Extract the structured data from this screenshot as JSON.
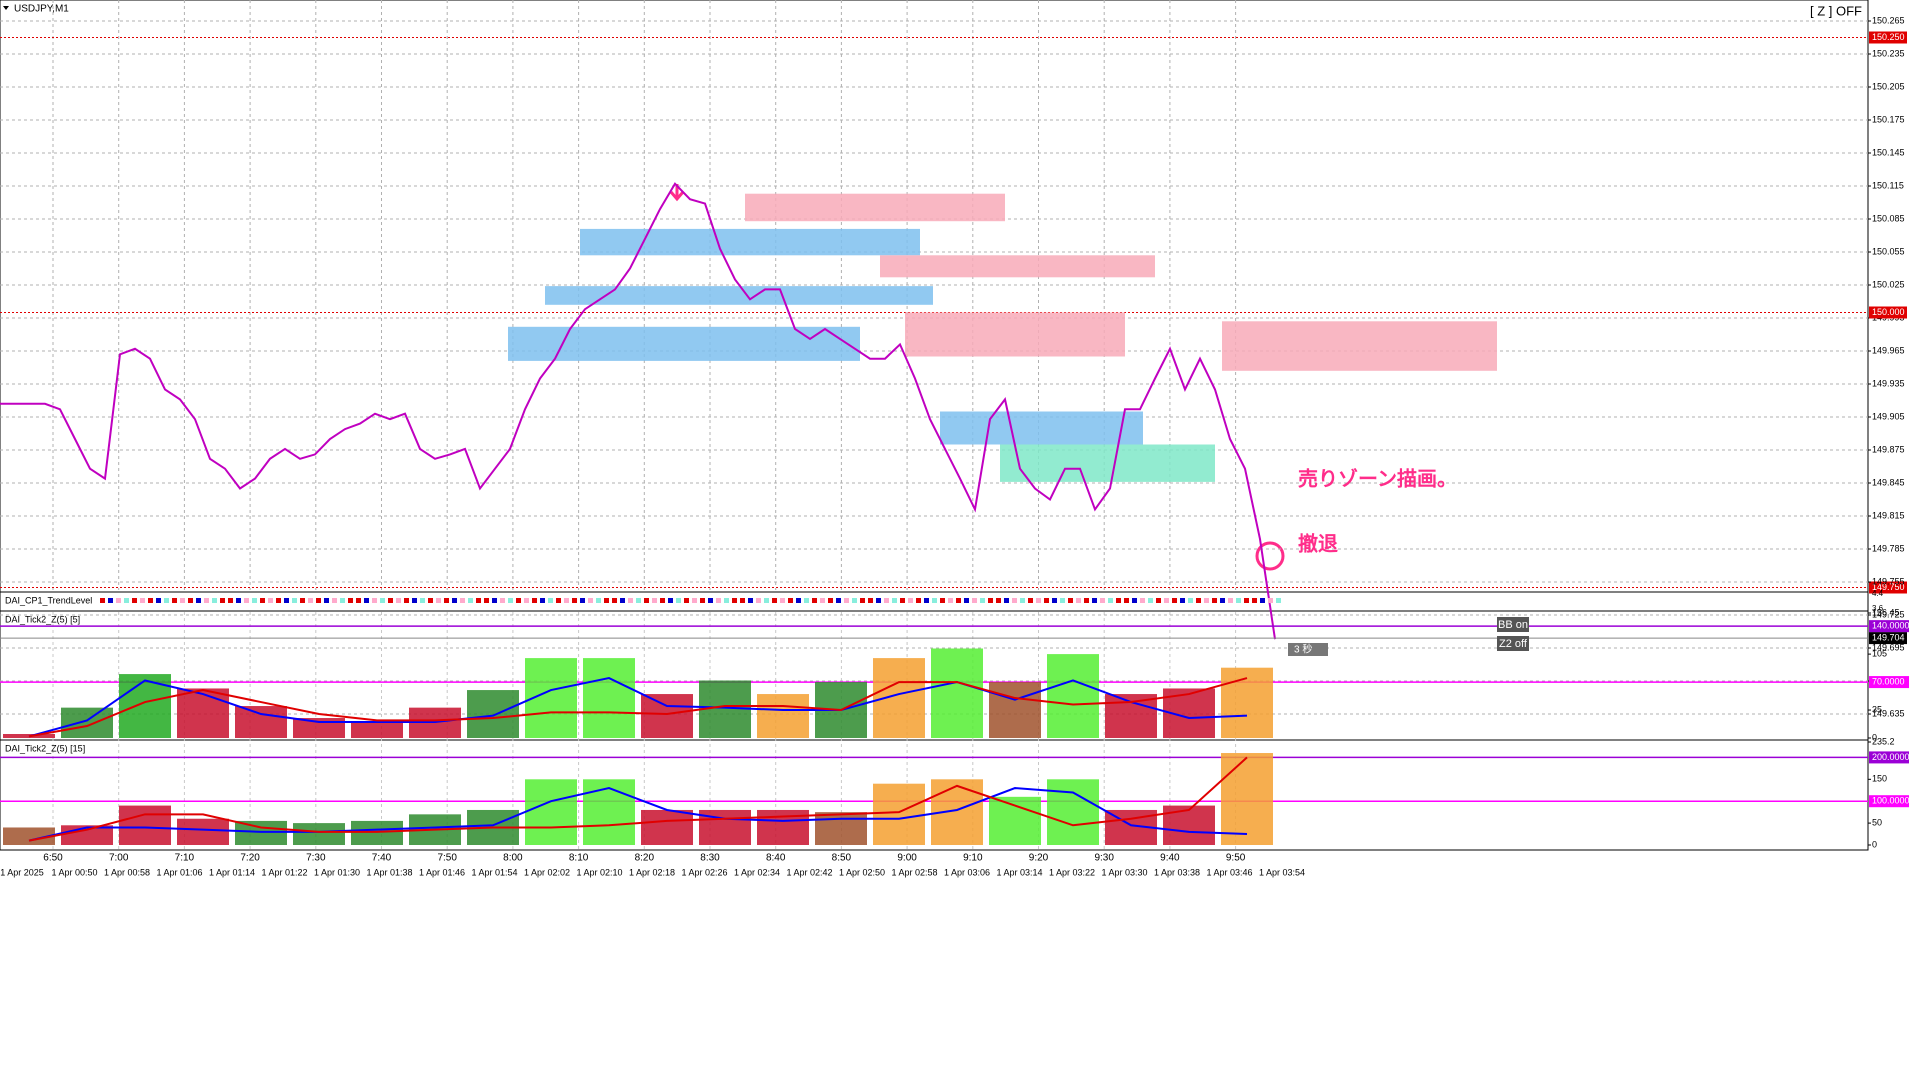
{
  "window": {
    "symbol": "USDJPY,M1",
    "zmode": "[ Z ] OFF"
  },
  "x_axis": {
    "times": [
      "6:50",
      "7:00",
      "7:10",
      "7:20",
      "7:30",
      "7:40",
      "7:50",
      "8:00",
      "8:10",
      "8:20",
      "8:30",
      "8:40",
      "8:50",
      "9:00",
      "9:10",
      "9:20",
      "9:30",
      "9:40",
      "9:50"
    ],
    "dates": [
      "1 Apr 2025",
      "1 Apr 00:50",
      "1 Apr 00:58",
      "1 Apr 01:06",
      "1 Apr 01:14",
      "1 Apr 01:22",
      "1 Apr 01:30",
      "1 Apr 01:38",
      "1 Apr 01:46",
      "1 Apr 01:54",
      "1 Apr 02:02",
      "1 Apr 02:10",
      "1 Apr 02:18",
      "1 Apr 02:26",
      "1 Apr 02:34",
      "1 Apr 02:42",
      "1 Apr 02:50",
      "1 Apr 02:58",
      "1 Apr 03:06",
      "1 Apr 03:14",
      "1 Apr 03:22",
      "1 Apr 03:30",
      "1 Apr 03:38",
      "1 Apr 03:46",
      "1 Apr 03:54"
    ]
  },
  "chart_data": [
    {
      "type": "line",
      "color": "#c000c0",
      "values": [
        149.917,
        149.917,
        149.917,
        149.917,
        149.912,
        149.885,
        149.858,
        149.849,
        149.962,
        149.967,
        149.958,
        149.93,
        149.921,
        149.903,
        149.867,
        149.858,
        149.84,
        149.849,
        149.867,
        149.876,
        149.867,
        149.871,
        149.885,
        149.894,
        149.899,
        149.908,
        149.903,
        149.908,
        149.876,
        149.867,
        149.871,
        149.876,
        149.84,
        149.858,
        149.876,
        149.912,
        149.94,
        149.958,
        149.985,
        150.003,
        150.012,
        150.021,
        150.04,
        150.067,
        150.094,
        150.117,
        150.103,
        150.099,
        150.058,
        150.03,
        150.012,
        150.021,
        150.021,
        149.985,
        149.976,
        149.985,
        149.976,
        149.967,
        149.958,
        149.958,
        149.971,
        149.94,
        149.903,
        149.876,
        149.849,
        149.821,
        149.903,
        149.921,
        149.858,
        149.84,
        149.83,
        149.858,
        149.858,
        149.821,
        149.84,
        149.912,
        149.912,
        149.94,
        149.967,
        149.93,
        149.958,
        149.93,
        149.885,
        149.858,
        149.794,
        149.703
      ],
      "ylim": [
        149.625,
        150.275
      ],
      "yticks": [
        149.635,
        149.665,
        149.695,
        149.725,
        {
          "value": 149.75,
          "label": "149.750"
        },
        149.755,
        149.785,
        149.815,
        149.845,
        149.875,
        149.905,
        149.935,
        149.965,
        149.995,
        {
          "value": 150.0,
          "label": "150.000"
        },
        150.025,
        150.055,
        150.085,
        150.115,
        150.145,
        150.175,
        150.205,
        150.235,
        {
          "value": 150.25,
          "label": "150.250"
        },
        150.265
      ],
      "level_color": "#e00000",
      "last_price": 149.704,
      "grid": true,
      "zones": [
        {
          "top": 150.108,
          "bottom": 150.083,
          "color": "#f8aab8"
        },
        {
          "top": 150.076,
          "bottom": 150.052,
          "color": "#7ec0ee"
        },
        {
          "top": 150.052,
          "bottom": 150.032,
          "color": "#f8aab8"
        },
        {
          "top": 150.024,
          "bottom": 150.007,
          "color": "#7ec0ee"
        },
        {
          "top": 149.987,
          "bottom": 149.956,
          "color": "#7ec0ee"
        },
        {
          "top": 150.0,
          "bottom": 149.96,
          "color": "#f8aab8"
        },
        {
          "top": 149.992,
          "bottom": 149.947,
          "color": "#f8aab8"
        },
        {
          "top": 149.91,
          "bottom": 149.88,
          "color": "#7ec0ee"
        },
        {
          "top": 149.88,
          "bottom": 149.846,
          "color": "#7fe8c8"
        }
      ],
      "annotations": [
        "売りゾーン描画。",
        "撤退"
      ],
      "timer": "3 秒"
    },
    {
      "type": "strip",
      "title": "DAI_CP1_TrendLevel",
      "ylim": [
        3.6,
        4.4
      ],
      "yticks": [
        3.6,
        4.4
      ]
    },
    {
      "type": "bar",
      "title": "DAI_Tick2_Z(5) [5]",
      "ylim": [
        0,
        156.45
      ],
      "yticks": [
        0,
        35,
        {
          "value": 70,
          "label": "70.0000"
        },
        105,
        {
          "value": 140,
          "label": "140.0000"
        },
        156.45
      ],
      "level_colors": [
        "#ff00ff",
        "#9b00d6"
      ],
      "values": [
        5,
        38,
        80,
        62,
        40,
        25,
        20,
        38,
        60,
        100,
        100,
        55,
        72,
        55,
        70,
        100,
        112,
        70,
        105,
        55,
        62,
        88
      ],
      "bar_colors": [
        "#c8102e",
        "#2e8b2e",
        "#22aa22",
        "#c8102e",
        "#c8102e",
        "#c8102e",
        "#c8102e",
        "#c8102e",
        "#2e8b2e",
        "#55ee33",
        "#55ee33",
        "#c8102e",
        "#2e8b2e",
        "#f5a030",
        "#2e8b2e",
        "#f5a030",
        "#55ee33",
        "#a0522d",
        "#55ee33",
        "#c8102e",
        "#c8102e",
        "#f5a030"
      ],
      "lines": [
        {
          "color": "#0000ff",
          "values": [
            2,
            22,
            72,
            55,
            30,
            20,
            20,
            20,
            28,
            60,
            75,
            40,
            38,
            35,
            35,
            55,
            70,
            48,
            72,
            45,
            25,
            28
          ]
        },
        {
          "color": "#e00000",
          "values": [
            2,
            15,
            45,
            60,
            45,
            30,
            22,
            22,
            25,
            32,
            32,
            30,
            40,
            40,
            35,
            70,
            70,
            50,
            42,
            45,
            55,
            75
          ]
        }
      ],
      "buttons": [
        "BB on",
        "Z2 off"
      ]
    },
    {
      "type": "bar",
      "title": "DAI_Tick2_Z(5) [15]",
      "ylim": [
        0,
        235.2
      ],
      "yticks": [
        0,
        50,
        {
          "value": 100,
          "label": "100.0000"
        },
        150,
        {
          "value": 200,
          "label": "200.0000"
        },
        235.2
      ],
      "level_colors": [
        "#ff00ff",
        "#9b00d6"
      ],
      "values": [
        40,
        45,
        90,
        60,
        55,
        50,
        55,
        70,
        80,
        150,
        150,
        80,
        80,
        80,
        75,
        140,
        150,
        110,
        150,
        80,
        90,
        210
      ],
      "bar_colors": [
        "#a0522d",
        "#c8102e",
        "#c8102e",
        "#c8102e",
        "#2e8b2e",
        "#2e8b2e",
        "#2e8b2e",
        "#2e8b2e",
        "#2e8b2e",
        "#55ee33",
        "#55ee33",
        "#c8102e",
        "#c8102e",
        "#c8102e",
        "#a0522d",
        "#f5a030",
        "#f5a030",
        "#55ee33",
        "#55ee33",
        "#c8102e",
        "#c8102e",
        "#f5a030"
      ],
      "lines": [
        {
          "color": "#0000ff",
          "values": [
            10,
            40,
            40,
            35,
            30,
            30,
            35,
            40,
            45,
            100,
            130,
            80,
            60,
            55,
            60,
            60,
            80,
            130,
            120,
            45,
            30,
            25
          ]
        },
        {
          "color": "#e00000",
          "values": [
            10,
            35,
            70,
            70,
            40,
            30,
            30,
            35,
            40,
            40,
            45,
            55,
            60,
            65,
            70,
            75,
            135,
            90,
            45,
            60,
            80,
            200
          ]
        }
      ]
    }
  ]
}
